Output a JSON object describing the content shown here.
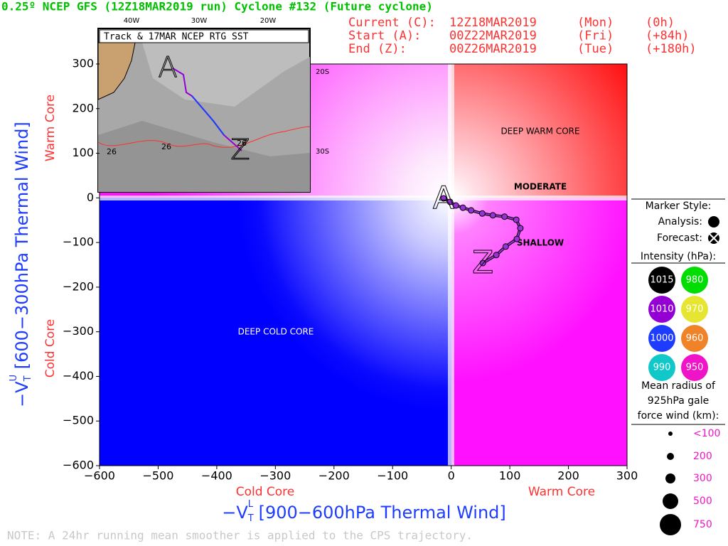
{
  "chart_data": {
    "type": "line",
    "title": "0.25º NCEP GFS (12Z18MAR2019 run) Cyclone #132 (Future cyclone)",
    "info": [
      [
        "Current (C):",
        "12Z18MAR2019",
        "(Mon)",
        "(0h)"
      ],
      [
        "Start (A):",
        "00Z22MAR2019",
        "(Fri)",
        "(+84h)"
      ],
      [
        "End (Z):",
        "00Z26MAR2019",
        "(Tue)",
        "(+180h)"
      ]
    ],
    "xlabel": {
      "minus": "−V",
      "sub": "T",
      "sup": "L",
      "rest": " [900−600hPa Thermal Wind]"
    },
    "ylabel": {
      "minus": "−V",
      "sub": "T",
      "sup": "U",
      "rest": " [600−300hPa Thermal Wind]"
    },
    "x_side_labels": [
      "Cold Core",
      "Warm Core"
    ],
    "y_side_labels": [
      "Warm Core",
      "Cold Core"
    ],
    "regions": [
      "DEEP WARM CORE",
      "MODERATE",
      "SHALLOW",
      "DEEP COLD CORE"
    ],
    "start_label": "A",
    "end_label": "Z",
    "x": [
      -13,
      -2,
      8,
      20,
      34,
      53,
      71,
      91,
      111,
      118,
      112,
      93,
      77,
      54
    ],
    "values": [
      -1,
      -9,
      -17,
      -22,
      -28,
      -35,
      -39,
      -42,
      -49,
      -68,
      -92,
      -109,
      -128,
      -146
    ],
    "color": "#9a30d8",
    "xlim": [
      -600,
      300
    ],
    "ylim": [
      -600,
      300
    ],
    "xticks": [
      {
        "value": -600,
        "label": "−600"
      },
      {
        "value": -500,
        "label": "−500"
      },
      {
        "value": -400,
        "label": "−400"
      },
      {
        "value": -300,
        "label": "−300"
      },
      {
        "value": -200,
        "label": "−200"
      },
      {
        "value": -100,
        "label": "−100"
      },
      0,
      100,
      200,
      300
    ],
    "yticks": [
      300,
      200,
      100,
      0,
      {
        "value": -100,
        "label": "−100"
      },
      {
        "value": -200,
        "label": "−200"
      },
      {
        "value": -300,
        "label": "−300"
      },
      {
        "value": -400,
        "label": "−400"
      },
      {
        "value": -500,
        "label": "−500"
      },
      {
        "value": -600,
        "label": "−600"
      }
    ],
    "inset": {
      "title": "Track & 17MAR NCEP RTG SST",
      "lon_labels": [
        "40W",
        "30W",
        "20W"
      ],
      "lat_labels": [
        "20S",
        "30S"
      ],
      "sst_labels": [
        "26",
        "26",
        "26"
      ]
    },
    "legend": {
      "marker_title": "Marker Style:",
      "analysis": "Analysis:",
      "forecast": "Forecast:",
      "intensity_title": "Intensity (hPa):",
      "intensity": [
        {
          "label": "1015",
          "color": "#000000"
        },
        {
          "label": "980",
          "color": "#00dd00"
        },
        {
          "label": "1010",
          "color": "#9400d3"
        },
        {
          "label": "970",
          "color": "#e6e632"
        },
        {
          "label": "1000",
          "color": "#1e3cff"
        },
        {
          "label": "960",
          "color": "#f08228"
        },
        {
          "label": "990",
          "color": "#10c8c8"
        },
        {
          "label": "950",
          "color": "#f014c8"
        }
      ],
      "radius_title": [
        "Mean radius of",
        "925hPa gale",
        "force wind (km):"
      ],
      "radius": [
        "<100",
        "200",
        "300",
        "500",
        "750"
      ]
    },
    "note": "NOTE:  A 24hr running mean smoother is applied to the CPS trajectory."
  }
}
